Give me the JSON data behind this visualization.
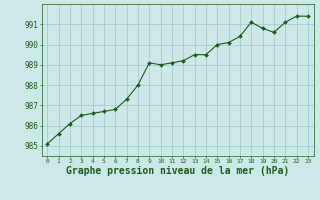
{
  "x": [
    0,
    1,
    2,
    3,
    4,
    5,
    6,
    7,
    8,
    9,
    10,
    11,
    12,
    13,
    14,
    15,
    16,
    17,
    18,
    19,
    20,
    21,
    22,
    23
  ],
  "y": [
    985.1,
    985.6,
    986.1,
    986.5,
    986.6,
    986.7,
    986.8,
    987.3,
    988.0,
    989.1,
    989.0,
    989.1,
    989.2,
    989.5,
    989.5,
    990.0,
    990.1,
    990.4,
    991.1,
    990.8,
    990.6,
    991.1,
    991.4,
    991.4
  ],
  "line_color": "#1a5c1a",
  "marker_color": "#1a5c1a",
  "bg_color": "#cce8e8",
  "grid_color": "#aacccc",
  "xlabel": "Graphe pression niveau de la mer (hPa)",
  "xlabel_fontsize": 7,
  "tick_color": "#1a5c1a",
  "ylim": [
    984.5,
    992.0
  ],
  "yticks": [
    985,
    986,
    987,
    988,
    989,
    990,
    991
  ],
  "xticks": [
    0,
    1,
    2,
    3,
    4,
    5,
    6,
    7,
    8,
    9,
    10,
    11,
    12,
    13,
    14,
    15,
    16,
    17,
    18,
    19,
    20,
    21,
    22,
    23
  ],
  "xlim": [
    -0.5,
    23.5
  ]
}
